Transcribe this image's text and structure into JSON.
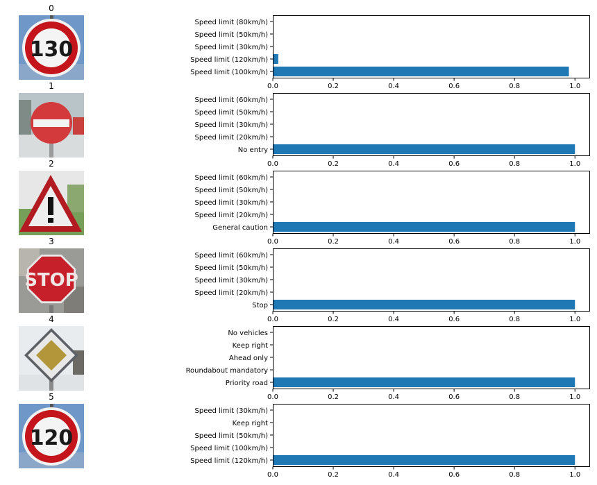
{
  "colors": {
    "bar": "#1f77b4",
    "axis": "#000000",
    "text": "#000000"
  },
  "chart_data": [
    {
      "type": "bar",
      "orientation": "horizontal",
      "title": "0",
      "image_icon": "speed-limit-130-sign",
      "image_text": "130",
      "categories": [
        "Speed limit (100km/h)",
        "Speed limit (120km/h)",
        "Speed limit (30km/h)",
        "Speed limit (50km/h)",
        "Speed limit (80km/h)"
      ],
      "values": [
        0.98,
        0.018,
        0.0,
        0.0,
        0.0
      ],
      "xlim": [
        0,
        1.05
      ],
      "xticks": [
        "0.0",
        "0.2",
        "0.4",
        "0.6",
        "0.8",
        "1.0"
      ],
      "grid": false
    },
    {
      "type": "bar",
      "orientation": "horizontal",
      "title": "1",
      "image_icon": "no-entry-sign",
      "categories": [
        "No entry",
        "Speed limit (20km/h)",
        "Speed limit (30km/h)",
        "Speed limit (50km/h)",
        "Speed limit (60km/h)"
      ],
      "values": [
        1.0,
        0.0,
        0.0,
        0.0,
        0.0
      ],
      "xlim": [
        0,
        1.05
      ],
      "xticks": [
        "0.0",
        "0.2",
        "0.4",
        "0.6",
        "0.8",
        "1.0"
      ],
      "grid": false
    },
    {
      "type": "bar",
      "orientation": "horizontal",
      "title": "2",
      "image_icon": "general-caution-sign",
      "categories": [
        "General caution",
        "Speed limit (20km/h)",
        "Speed limit (30km/h)",
        "Speed limit (50km/h)",
        "Speed limit (60km/h)"
      ],
      "values": [
        1.0,
        0.0,
        0.0,
        0.0,
        0.0
      ],
      "xlim": [
        0,
        1.05
      ],
      "xticks": [
        "0.0",
        "0.2",
        "0.4",
        "0.6",
        "0.8",
        "1.0"
      ],
      "grid": false
    },
    {
      "type": "bar",
      "orientation": "horizontal",
      "title": "3",
      "image_icon": "stop-sign",
      "image_text": "STOP",
      "categories": [
        "Stop",
        "Speed limit (20km/h)",
        "Speed limit (30km/h)",
        "Speed limit (50km/h)",
        "Speed limit (60km/h)"
      ],
      "values": [
        1.0,
        0.0,
        0.0,
        0.0,
        0.0
      ],
      "xlim": [
        0,
        1.05
      ],
      "xticks": [
        "0.0",
        "0.2",
        "0.4",
        "0.6",
        "0.8",
        "1.0"
      ],
      "grid": false
    },
    {
      "type": "bar",
      "orientation": "horizontal",
      "title": "4",
      "image_icon": "priority-road-sign",
      "categories": [
        "Priority road",
        "Roundabout mandatory",
        "Ahead only",
        "Keep right",
        "No vehicles"
      ],
      "values": [
        1.0,
        0.0,
        0.0,
        0.0,
        0.0
      ],
      "xlim": [
        0,
        1.05
      ],
      "xticks": [
        "0.0",
        "0.2",
        "0.4",
        "0.6",
        "0.8",
        "1.0"
      ],
      "grid": false
    },
    {
      "type": "bar",
      "orientation": "horizontal",
      "title": "5",
      "image_icon": "speed-limit-120-sign",
      "image_text": "120",
      "categories": [
        "Speed limit (120km/h)",
        "Speed limit (100km/h)",
        "Speed limit (50km/h)",
        "Keep right",
        "Speed limit (30km/h)"
      ],
      "values": [
        1.0,
        0.0,
        0.0,
        0.0,
        0.0
      ],
      "xlim": [
        0,
        1.05
      ],
      "xticks": [
        "0.0",
        "0.2",
        "0.4",
        "0.6",
        "0.8",
        "1.0"
      ],
      "grid": false
    }
  ]
}
